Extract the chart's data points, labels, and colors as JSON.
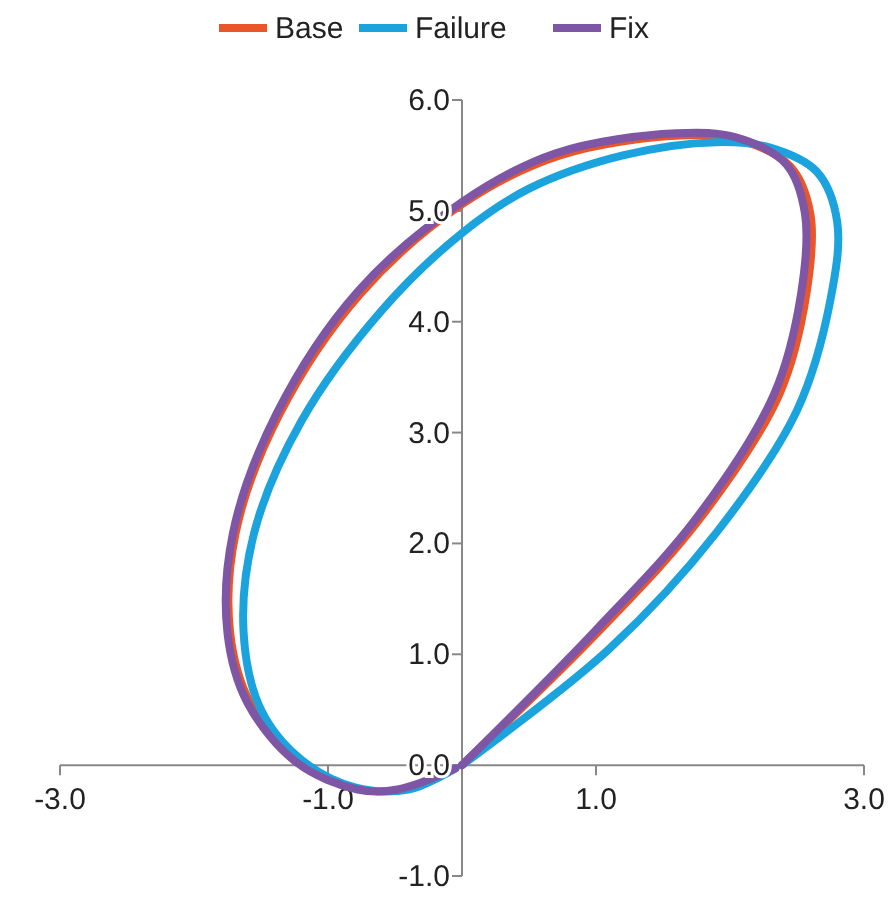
{
  "chart_data": {
    "type": "line",
    "marker": "none",
    "line_style": "solid",
    "legend": "top",
    "grid": false,
    "xlim": [
      -3,
      3
    ],
    "xticks": [
      {
        "value": -3,
        "label": "-3.0"
      },
      {
        "value": -1,
        "label": "-1.0"
      },
      {
        "value": 1,
        "label": "1.0"
      },
      {
        "value": 3,
        "label": "3.0"
      }
    ],
    "ylim": [
      -1,
      6
    ],
    "yticks": [
      {
        "value": -1,
        "label": "-1.0"
      },
      {
        "value": 0,
        "label": "0.0"
      },
      {
        "value": 1,
        "label": "1.0"
      },
      {
        "value": 2,
        "label": "2.0"
      },
      {
        "value": 3,
        "label": "3.0"
      },
      {
        "value": 4,
        "label": "4.0"
      },
      {
        "value": 5,
        "label": "5.0"
      },
      {
        "value": 6,
        "label": "6.0"
      }
    ],
    "series": [
      {
        "name": "Base",
        "color": "#e8562a",
        "x": [
          0,
          1.03,
          1.78,
          2.37,
          2.57,
          2.6,
          2.45,
          2.07,
          1.63,
          0.73,
          0,
          -0.76,
          -1.36,
          -1.69,
          -1.73,
          -1.58,
          -1.21
        ],
        "values": [
          0,
          1.22,
          2.23,
          3.35,
          4.25,
          4.97,
          5.4,
          5.64,
          5.68,
          5.5,
          5.06,
          4.25,
          3.17,
          2.09,
          1.19,
          0.56,
          0.02
        ]
      },
      {
        "name": "Failure",
        "color": "#1aa3dd",
        "x": [
          0,
          1.1,
          1.9,
          2.5,
          2.75,
          2.8,
          2.65,
          2.3,
          1.9,
          1.2,
          0.5,
          0,
          -0.6,
          -1.2,
          -1.55,
          -1.63,
          -1.5,
          -1.2,
          -0.8,
          -0.4,
          -0.05
        ],
        "values": [
          0,
          1.05,
          2.1,
          3.2,
          4.2,
          4.9,
          5.35,
          5.57,
          5.62,
          5.5,
          5.2,
          4.8,
          4.1,
          3.1,
          2.1,
          1.2,
          0.5,
          0.05,
          -0.2,
          -0.22,
          -0.03
        ]
      },
      {
        "name": "Fix",
        "color": "#7f56a6",
        "x": [
          0,
          1.0,
          1.75,
          2.33,
          2.53,
          2.56,
          2.42,
          2.05,
          1.6,
          0.7,
          0,
          -0.78,
          -1.38,
          -1.71,
          -1.75,
          -1.6,
          -1.23,
          -0.78,
          -0.48,
          -0.05
        ],
        "values": [
          0,
          1.22,
          2.23,
          3.35,
          4.25,
          4.97,
          5.42,
          5.66,
          5.7,
          5.52,
          5.08,
          4.27,
          3.18,
          2.09,
          1.19,
          0.56,
          0.02,
          -0.22,
          -0.22,
          -0.03
        ]
      }
    ]
  }
}
